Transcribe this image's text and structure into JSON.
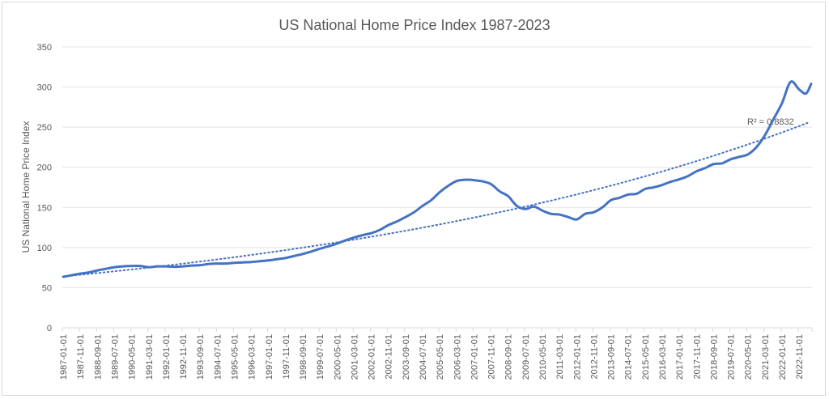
{
  "chart_data": {
    "type": "line",
    "title": "US National Home Price Index 1987-2023",
    "xlabel": "",
    "ylabel": "US National Home Price Index",
    "ylim": [
      0,
      350
    ],
    "yticks": [
      0,
      50,
      100,
      150,
      200,
      250,
      300,
      350
    ],
    "grid": true,
    "legend": "none",
    "x_tick_labels": [
      "1987-01-01",
      "1987-11-01",
      "1988-09-01",
      "1989-07-01",
      "1990-05-01",
      "1991-03-01",
      "1992-01-01",
      "1992-11-01",
      "1993-09-01",
      "1994-07-01",
      "1995-05-01",
      "1996-03-01",
      "1997-01-01",
      "1997-11-01",
      "1998-09-01",
      "1999-07-01",
      "2000-05-01",
      "2001-03-01",
      "2002-01-01",
      "2002-11-01",
      "2003-09-01",
      "2004-07-01",
      "2005-05-01",
      "2006-03-01",
      "2007-01-01",
      "2007-11-01",
      "2008-09-01",
      "2009-07-01",
      "2010-05-01",
      "2011-03-01",
      "2012-01-01",
      "2012-11-01",
      "2013-09-01",
      "2014-07-01",
      "2015-05-01",
      "2016-03-01",
      "2017-01-01",
      "2017-11-01",
      "2018-09-01",
      "2019-07-01",
      "2020-05-01",
      "2021-03-01",
      "2022-01-01",
      "2022-11-01"
    ],
    "series": [
      {
        "name": "US National Home Price Index",
        "color": "#4472C4",
        "x": [
          "1987-01-01",
          "1987-06-01",
          "1987-11-01",
          "1988-04-01",
          "1988-09-01",
          "1989-02-01",
          "1989-07-01",
          "1989-12-01",
          "1990-05-01",
          "1990-10-01",
          "1991-03-01",
          "1991-08-01",
          "1992-01-01",
          "1992-06-01",
          "1992-11-01",
          "1993-04-01",
          "1993-09-01",
          "1994-02-01",
          "1994-07-01",
          "1994-12-01",
          "1995-05-01",
          "1995-10-01",
          "1996-03-01",
          "1996-08-01",
          "1997-01-01",
          "1997-06-01",
          "1997-11-01",
          "1998-04-01",
          "1998-09-01",
          "1999-02-01",
          "1999-07-01",
          "1999-12-01",
          "2000-05-01",
          "2000-10-01",
          "2001-03-01",
          "2001-08-01",
          "2002-01-01",
          "2002-06-01",
          "2002-11-01",
          "2003-04-01",
          "2003-09-01",
          "2004-02-01",
          "2004-07-01",
          "2004-12-01",
          "2005-05-01",
          "2005-10-01",
          "2006-03-01",
          "2006-08-01",
          "2007-01-01",
          "2007-06-01",
          "2007-11-01",
          "2008-04-01",
          "2008-09-01",
          "2009-02-01",
          "2009-07-01",
          "2009-12-01",
          "2010-05-01",
          "2010-10-01",
          "2011-03-01",
          "2011-08-01",
          "2012-01-01",
          "2012-06-01",
          "2012-11-01",
          "2013-04-01",
          "2013-09-01",
          "2014-02-01",
          "2014-07-01",
          "2014-12-01",
          "2015-05-01",
          "2015-10-01",
          "2016-03-01",
          "2016-08-01",
          "2017-01-01",
          "2017-06-01",
          "2017-11-01",
          "2018-04-01",
          "2018-09-01",
          "2019-02-01",
          "2019-07-01",
          "2019-12-01",
          "2020-05-01",
          "2020-10-01",
          "2021-03-01",
          "2021-08-01",
          "2022-01-01",
          "2022-06-01",
          "2022-11-01",
          "2023-03-01",
          "2023-06-01"
        ],
        "values": [
          63.5,
          65.5,
          67.5,
          69,
          71.5,
          73.5,
          75.5,
          76.5,
          77,
          77,
          75.5,
          76.5,
          76.5,
          76,
          76.5,
          77.5,
          78,
          79.5,
          80,
          80,
          81,
          81.5,
          82,
          83,
          84,
          85.5,
          87,
          89.5,
          92,
          95,
          98.5,
          101.5,
          105,
          109,
          112.5,
          115.5,
          118,
          122,
          128,
          132.5,
          138,
          144,
          152,
          159,
          169,
          177,
          183,
          184.5,
          184,
          182.5,
          179,
          170,
          164,
          152,
          148,
          151,
          146,
          142,
          141,
          138,
          135,
          142,
          144,
          150,
          159,
          162,
          166,
          167,
          173,
          175,
          178,
          182,
          185,
          189,
          195,
          199,
          204,
          205,
          210,
          213,
          216,
          225,
          240,
          260,
          280,
          306.5,
          297,
          292,
          304
        ]
      }
    ],
    "trendline": {
      "type": "exponential",
      "style": "dotted",
      "color": "#4472C4",
      "r_squared_label": "R² = 0.8832",
      "start_value": 64,
      "end_value": 257
    }
  }
}
